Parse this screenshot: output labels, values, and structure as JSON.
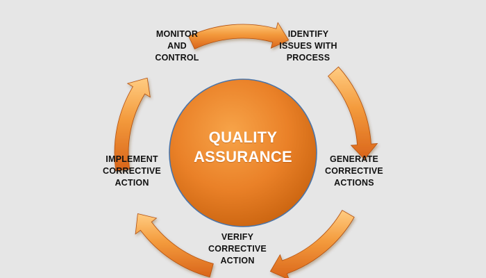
{
  "diagram": {
    "center": {
      "lines": [
        "QUALITY",
        "ASSURANCE"
      ]
    },
    "steps": [
      {
        "id": "identify",
        "lines": [
          "IDENTIFY",
          "ISSUES WITH",
          "PROCESS"
        ]
      },
      {
        "id": "generate",
        "lines": [
          "GENERATE",
          "CORRECTIVE",
          "ACTIONS"
        ]
      },
      {
        "id": "verify",
        "lines": [
          "VERIFY",
          "CORRECTIVE",
          "ACTION"
        ]
      },
      {
        "id": "implement",
        "lines": [
          "IMPLEMENT",
          "CORRECTIVE",
          "ACTION"
        ]
      },
      {
        "id": "monitor",
        "lines": [
          "MONITOR",
          "AND",
          "CONTROL"
        ]
      }
    ],
    "colors": {
      "background": "#e6e6e6",
      "circle_light": "#f7a449",
      "circle_mid": "#ea8128",
      "circle_dark": "#c8620e",
      "circle_border": "#4a74a8",
      "arrow_light": "#ffcc82",
      "arrow_mid": "#f39a3c",
      "arrow_dark": "#d9641a",
      "arrow_edge": "#b34f0c",
      "text": "#111111",
      "center_text": "#ffffff"
    }
  }
}
